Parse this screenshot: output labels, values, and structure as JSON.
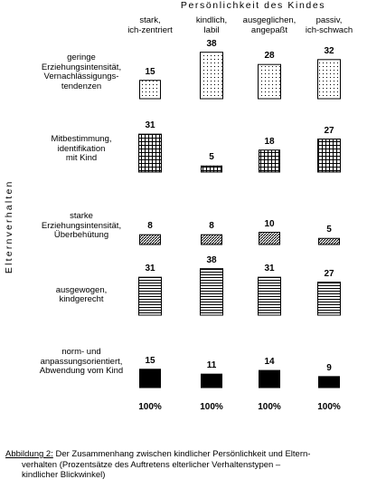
{
  "chart_data": {
    "type": "bar-matrix",
    "title": "Persönlichkeit des Kindes",
    "y_label": "Elternverhalten",
    "categories": [
      "stark,\nich-zentriert",
      "kindlich,\nlabil",
      "ausgeglichen,\nangepaßt",
      "passiv,\nich-schwach"
    ],
    "series": [
      {
        "name": "geringe\nErziehungsintensität,\nVernachlässigungs-\ntendenzen",
        "pattern": "dots",
        "color": "#000000",
        "values": [
          15,
          38,
          28,
          32
        ]
      },
      {
        "name": "Mitbestimmung,\nidentifikation\nmit Kind",
        "pattern": "grid",
        "color": "#000000",
        "values": [
          31,
          5,
          18,
          27
        ]
      },
      {
        "name": "starke\nErziehungsintensität,\nÜberbehütung",
        "pattern": "hatch",
        "color": "#000000",
        "values": [
          8,
          8,
          10,
          5
        ]
      },
      {
        "name": "ausgewogen,\nkindgerecht",
        "pattern": "hlines",
        "color": "#000000",
        "values": [
          31,
          38,
          31,
          27
        ]
      },
      {
        "name": "norm- und\nanpassungsorientiert,\nAbwendung vom Kind",
        "pattern": "solid",
        "color": "#000000",
        "values": [
          15,
          11,
          14,
          9
        ]
      }
    ],
    "totals": [
      100,
      100,
      100,
      100
    ],
    "total_labels": [
      "100%",
      "100%",
      "100%",
      "100%"
    ]
  },
  "caption": {
    "label": "Abbildung 2:",
    "lines": [
      "Der Zusammenhang zwischen kindlicher Persönlichkeit und Eltern-",
      "verhalten (Prozentsätze des Auftretens elterlicher Verhaltenstypen –",
      "kindlicher Blickwinkel)"
    ]
  }
}
